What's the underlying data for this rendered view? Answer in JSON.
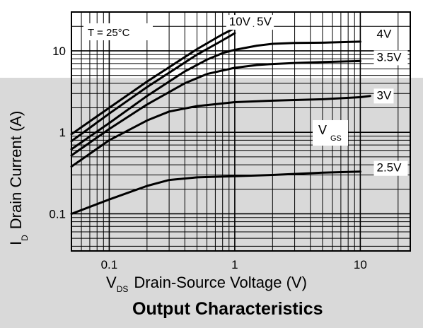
{
  "chart_data": {
    "type": "line",
    "title": "Output Characteristics",
    "xlabel": {
      "main": "V",
      "subscript": "DS",
      "rest": "Drain-Source Voltage (V)"
    },
    "ylabel": {
      "main": "I",
      "subscript": "D",
      "rest": "Drain Current (A)"
    },
    "x_scale": "log",
    "y_scale": "log",
    "xlim": [
      0.05,
      25
    ],
    "ylim": [
      0.035,
      30
    ],
    "grid": true,
    "x_ticks": [
      {
        "value": 0.1,
        "label": "0.1"
      },
      {
        "value": 1,
        "label": "1"
      },
      {
        "value": 10,
        "label": "10"
      }
    ],
    "y_ticks": [
      {
        "value": 0.1,
        "label": "0.1"
      },
      {
        "value": 1,
        "label": "1"
      },
      {
        "value": 10,
        "label": "10"
      }
    ],
    "annotation": "T = 25°C",
    "legend_title": {
      "main": "V",
      "subscript": "GS"
    },
    "series": [
      {
        "name": "10V",
        "label_at": [
          0.9,
          20.5
        ],
        "x": [
          0.05,
          0.1,
          0.2,
          0.5,
          0.8,
          1.0
        ],
        "y": [
          0.95,
          2.0,
          4.2,
          10.5,
          16.0,
          19.0
        ]
      },
      {
        "name": "5V",
        "label_at": [
          1.5,
          20.5
        ],
        "x": [
          0.05,
          0.1,
          0.2,
          0.5,
          0.8,
          1.0
        ],
        "y": [
          0.78,
          1.7,
          3.6,
          9.0,
          13.5,
          16.5
        ]
      },
      {
        "name": "4V",
        "label_at": [
          13.5,
          14.5
        ],
        "x": [
          0.05,
          0.1,
          0.2,
          0.4,
          0.6,
          0.8,
          1.0,
          1.5,
          2,
          3,
          5,
          10
        ],
        "y": [
          0.62,
          1.3,
          2.8,
          5.6,
          7.8,
          9.4,
          10.3,
          11.6,
          12.2,
          12.5,
          12.6,
          13.0
        ]
      },
      {
        "name": "3.5V",
        "label_at": [
          13.5,
          7.5
        ],
        "x": [
          0.05,
          0.1,
          0.2,
          0.4,
          0.6,
          1.0,
          1.5,
          2,
          3,
          5,
          10
        ],
        "y": [
          0.52,
          1.1,
          2.2,
          4.0,
          5.2,
          6.2,
          6.7,
          6.9,
          7.1,
          7.3,
          7.5
        ]
      },
      {
        "name": "3V",
        "label_at": [
          13.5,
          2.55
        ],
        "x": [
          0.05,
          0.1,
          0.2,
          0.3,
          0.5,
          1.0,
          2,
          5,
          10,
          12
        ],
        "y": [
          0.38,
          0.8,
          1.4,
          1.8,
          2.1,
          2.35,
          2.45,
          2.55,
          2.7,
          2.8
        ]
      },
      {
        "name": "2.5V",
        "label_at": [
          13.5,
          0.33
        ],
        "x": [
          0.05,
          0.1,
          0.2,
          0.3,
          0.5,
          1.0,
          2,
          5,
          10
        ],
        "y": [
          0.1,
          0.15,
          0.22,
          0.26,
          0.28,
          0.29,
          0.3,
          0.32,
          0.33
        ]
      }
    ]
  }
}
